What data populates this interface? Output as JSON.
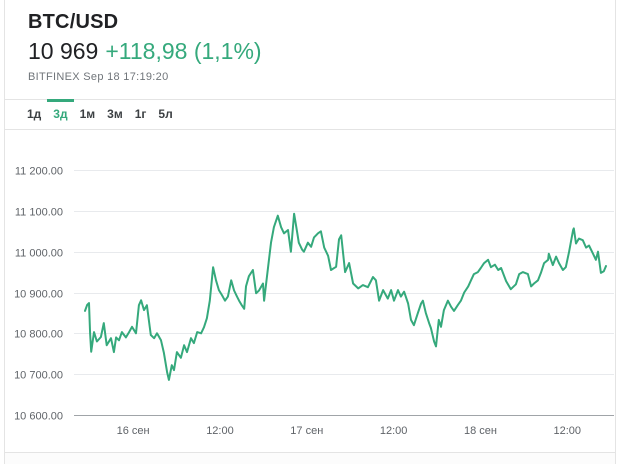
{
  "header": {
    "title": "BTC/USD",
    "price": "10 969",
    "change": "+118,98 (1,1%)",
    "exchange_info": "BITFINEX Sep 18 17:19:20"
  },
  "tabs": {
    "items": [
      {
        "label": "1д",
        "active": false
      },
      {
        "label": "3д",
        "active": true
      },
      {
        "label": "1м",
        "active": false
      },
      {
        "label": "3м",
        "active": false
      },
      {
        "label": "1г",
        "active": false
      },
      {
        "label": "5л",
        "active": false
      }
    ]
  },
  "colors": {
    "accent_green": "#35a97c",
    "text_primary": "#202124",
    "text_secondary": "#70757a",
    "axis_label": "#5f6368",
    "gridline": "#e8eaed",
    "axis_line": "#a0a4a8",
    "border": "#e4e4e4"
  },
  "chart_data": {
    "type": "line",
    "title": "BTC/USD price, 3-day range",
    "x_unit": "hours_since_range_start",
    "x_range": [
      0,
      72
    ],
    "y_range": [
      10600,
      11200
    ],
    "grid": true,
    "legend": "none",
    "line_color": "#35a97c",
    "x_ticks": [
      {
        "t": 6.65,
        "label": "16 сен"
      },
      {
        "t": 18.65,
        "label": "12:00"
      },
      {
        "t": 30.65,
        "label": "17 сен"
      },
      {
        "t": 42.65,
        "label": "12:00"
      },
      {
        "t": 54.65,
        "label": "18 сен"
      },
      {
        "t": 66.65,
        "label": "12:00"
      }
    ],
    "y_ticks": [
      {
        "value": 11200,
        "label": "11 200.00"
      },
      {
        "value": 11100,
        "label": "11 100.00"
      },
      {
        "value": 11000,
        "label": "11 000.00"
      },
      {
        "value": 10900,
        "label": "10 900.00"
      },
      {
        "value": 10800,
        "label": "10 800.00"
      },
      {
        "value": 10700,
        "label": "10 700.00"
      },
      {
        "value": 10600,
        "label": "10 600.00"
      }
    ],
    "points": [
      [
        0.0,
        10855
      ],
      [
        0.3,
        10870
      ],
      [
        0.55,
        10874
      ],
      [
        0.7,
        10800
      ],
      [
        0.85,
        10755
      ],
      [
        1.25,
        10803
      ],
      [
        1.65,
        10780
      ],
      [
        2.2,
        10791
      ],
      [
        2.6,
        10825
      ],
      [
        3.0,
        10771
      ],
      [
        3.6,
        10788
      ],
      [
        4.0,
        10754
      ],
      [
        4.3,
        10790
      ],
      [
        4.7,
        10783
      ],
      [
        5.1,
        10803
      ],
      [
        5.65,
        10790
      ],
      [
        6.1,
        10803
      ],
      [
        6.5,
        10816
      ],
      [
        7.05,
        10800
      ],
      [
        7.45,
        10869
      ],
      [
        7.75,
        10881
      ],
      [
        8.15,
        10857
      ],
      [
        8.55,
        10869
      ],
      [
        9.1,
        10796
      ],
      [
        9.55,
        10788
      ],
      [
        9.95,
        10800
      ],
      [
        10.5,
        10783
      ],
      [
        10.9,
        10752
      ],
      [
        11.35,
        10705
      ],
      [
        11.6,
        10686
      ],
      [
        12.0,
        10722
      ],
      [
        12.3,
        10710
      ],
      [
        12.7,
        10754
      ],
      [
        13.25,
        10740
      ],
      [
        13.7,
        10771
      ],
      [
        14.1,
        10754
      ],
      [
        14.65,
        10788
      ],
      [
        15.05,
        10776
      ],
      [
        15.5,
        10803
      ],
      [
        16.05,
        10800
      ],
      [
        16.45,
        10815
      ],
      [
        16.85,
        10837
      ],
      [
        17.25,
        10880
      ],
      [
        17.7,
        10962
      ],
      [
        18.1,
        10930
      ],
      [
        18.5,
        10906
      ],
      [
        18.95,
        10893
      ],
      [
        19.35,
        10880
      ],
      [
        19.75,
        10890
      ],
      [
        20.2,
        10930
      ],
      [
        20.6,
        10905
      ],
      [
        21.0,
        10890
      ],
      [
        21.3,
        10880
      ],
      [
        21.7,
        10868
      ],
      [
        22.0,
        10860
      ],
      [
        22.25,
        10915
      ],
      [
        22.65,
        10940
      ],
      [
        23.2,
        10955
      ],
      [
        23.65,
        10898
      ],
      [
        24.05,
        10905
      ],
      [
        24.6,
        10922
      ],
      [
        24.75,
        10880
      ],
      [
        25.15,
        10940
      ],
      [
        25.7,
        11022
      ],
      [
        26.1,
        11060
      ],
      [
        26.65,
        11088
      ],
      [
        27.1,
        11060
      ],
      [
        27.5,
        11045
      ],
      [
        28.05,
        11053
      ],
      [
        28.45,
        11000
      ],
      [
        28.9,
        11093
      ],
      [
        29.3,
        11050
      ],
      [
        29.55,
        11022
      ],
      [
        30.0,
        11005
      ],
      [
        30.25,
        11000
      ],
      [
        30.8,
        11022
      ],
      [
        31.25,
        11012
      ],
      [
        31.65,
        11035
      ],
      [
        32.2,
        11045
      ],
      [
        32.6,
        11050
      ],
      [
        33.05,
        11010
      ],
      [
        33.6,
        10990
      ],
      [
        34.0,
        10955
      ],
      [
        34.7,
        10963
      ],
      [
        35.1,
        11030
      ],
      [
        35.4,
        11040
      ],
      [
        35.95,
        10950
      ],
      [
        36.5,
        10972
      ],
      [
        37.05,
        10922
      ],
      [
        37.75,
        10910
      ],
      [
        38.4,
        10918
      ],
      [
        39.1,
        10913
      ],
      [
        39.8,
        10938
      ],
      [
        40.2,
        10930
      ],
      [
        40.65,
        10880
      ],
      [
        41.2,
        10906
      ],
      [
        41.85,
        10885
      ],
      [
        42.3,
        10906
      ],
      [
        42.7,
        10880
      ],
      [
        43.25,
        10906
      ],
      [
        43.65,
        10890
      ],
      [
        44.1,
        10902
      ],
      [
        44.65,
        10873
      ],
      [
        45.05,
        10833
      ],
      [
        45.45,
        10820
      ],
      [
        46.0,
        10850
      ],
      [
        46.45,
        10873
      ],
      [
        46.7,
        10880
      ],
      [
        47.1,
        10850
      ],
      [
        47.55,
        10825
      ],
      [
        47.8,
        10813
      ],
      [
        48.25,
        10780
      ],
      [
        48.5,
        10768
      ],
      [
        48.9,
        10833
      ],
      [
        49.2,
        10816
      ],
      [
        49.6,
        10857
      ],
      [
        50.15,
        10880
      ],
      [
        50.6,
        10865
      ],
      [
        51.0,
        10855
      ],
      [
        51.55,
        10870
      ],
      [
        51.95,
        10880
      ],
      [
        52.4,
        10900
      ],
      [
        52.95,
        10915
      ],
      [
        53.35,
        10930
      ],
      [
        53.75,
        10945
      ],
      [
        54.3,
        10950
      ],
      [
        54.7,
        10960
      ],
      [
        55.15,
        10972
      ],
      [
        55.7,
        10980
      ],
      [
        56.1,
        10962
      ],
      [
        56.65,
        10968
      ],
      [
        57.1,
        10955
      ],
      [
        57.5,
        10960
      ],
      [
        58.2,
        10928
      ],
      [
        58.85,
        10908
      ],
      [
        59.55,
        10920
      ],
      [
        60.0,
        10945
      ],
      [
        60.5,
        10950
      ],
      [
        61.2,
        10945
      ],
      [
        61.65,
        10915
      ],
      [
        62.05,
        10922
      ],
      [
        62.6,
        10930
      ],
      [
        63.0,
        10948
      ],
      [
        63.45,
        10972
      ],
      [
        64.0,
        10980
      ],
      [
        64.1,
        10995
      ],
      [
        64.65,
        10967
      ],
      [
        65.1,
        10988
      ],
      [
        65.5,
        10972
      ],
      [
        66.05,
        10955
      ],
      [
        66.45,
        10962
      ],
      [
        66.9,
        11000
      ],
      [
        67.45,
        11053
      ],
      [
        67.55,
        11057
      ],
      [
        67.85,
        11020
      ],
      [
        68.25,
        11032
      ],
      [
        68.8,
        11028
      ],
      [
        69.25,
        11010
      ],
      [
        69.65,
        11015
      ],
      [
        70.2,
        10995
      ],
      [
        70.6,
        10980
      ],
      [
        70.9,
        11000
      ],
      [
        71.3,
        10948
      ],
      [
        71.7,
        10952
      ],
      [
        72.0,
        10965
      ]
    ]
  }
}
